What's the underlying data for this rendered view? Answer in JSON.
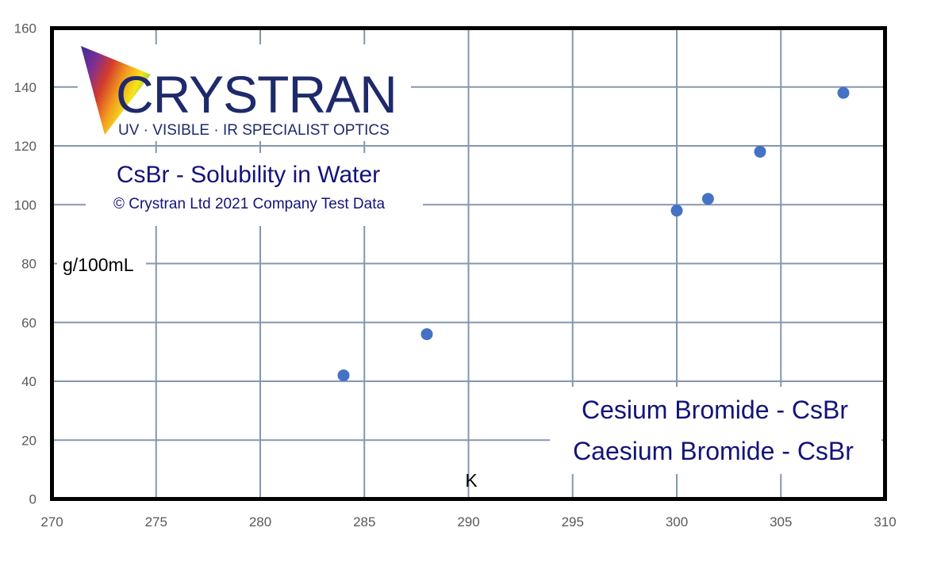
{
  "logo": {
    "name": "CRYSTRAN",
    "tagline": "UV · VISIBLE · IR SPECIALIST OPTICS"
  },
  "copyright": "© Crystran Ltd 2021 Company Test Data",
  "compound_names": [
    "Cesium Bromide  -  CsBr",
    "Caesium Bromide - CsBr"
  ],
  "colors": {
    "marker": "#4472c4",
    "grid": "#8497b0",
    "frame": "#000000",
    "title": "#13137a",
    "logo_text": "#1f2a6b"
  },
  "chart_data": {
    "type": "scatter",
    "title": "CsBr - Solubility in Water",
    "xlabel": "K",
    "ylabel": "g/100mL",
    "xlim": [
      270,
      310
    ],
    "ylim": [
      0,
      160
    ],
    "x_ticks": [
      270,
      275,
      280,
      285,
      290,
      295,
      300,
      305,
      310
    ],
    "y_ticks": [
      0,
      20,
      40,
      60,
      80,
      100,
      120,
      140,
      160
    ],
    "grid": true,
    "series": [
      {
        "x": [
          284,
          288,
          300,
          301.5,
          304,
          308
        ],
        "y": [
          42,
          56,
          98,
          102,
          118,
          138
        ]
      }
    ]
  }
}
